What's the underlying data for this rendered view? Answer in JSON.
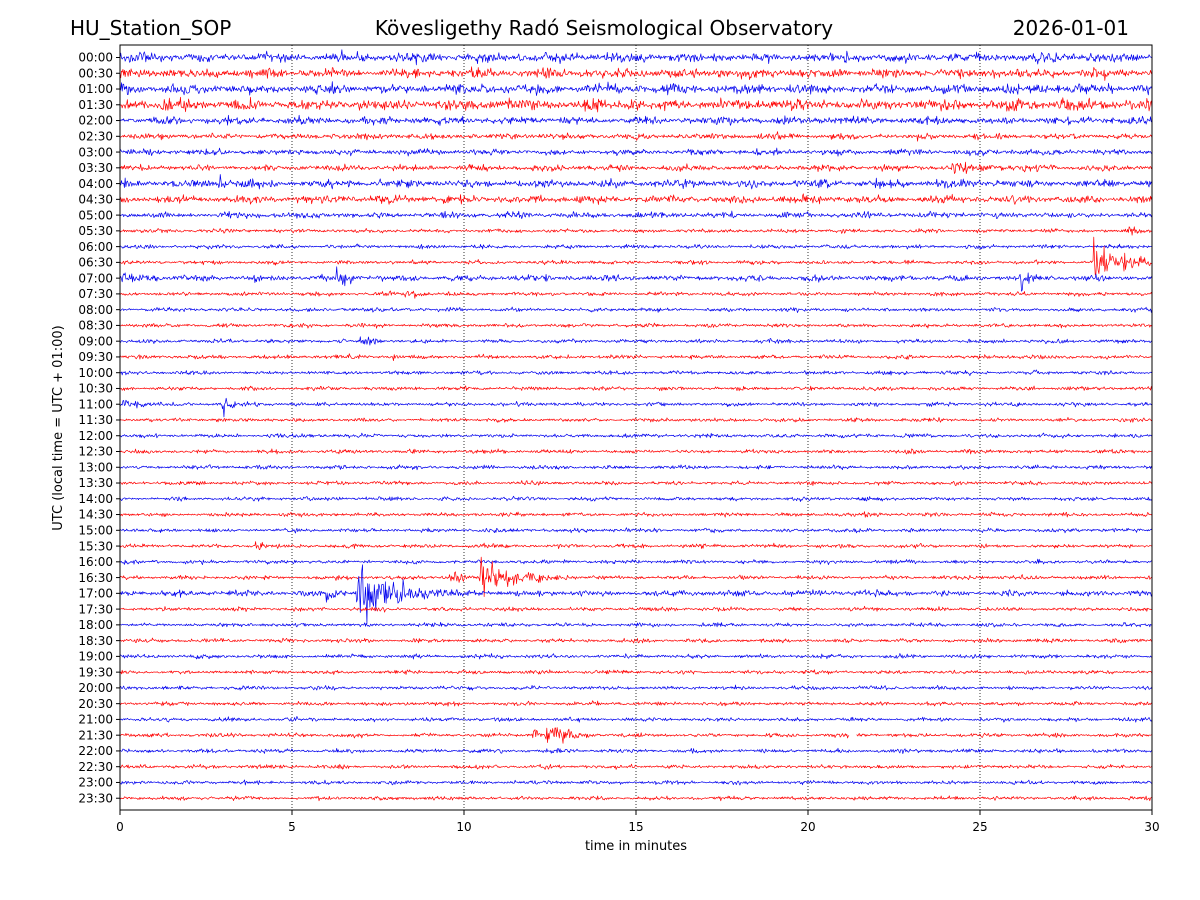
{
  "header": {
    "station": "HU_Station_SOP",
    "title": "Köveslig­ethy Radó Seismological Observatory",
    "date": "2026-01-01"
  },
  "chart_data": {
    "type": "line",
    "xlabel": "time in minutes",
    "ylabel": "UTC (local time = UTC + 01:00)",
    "xlim": [
      0,
      30
    ],
    "xticks": [
      "0",
      "5",
      "10",
      "15",
      "20",
      "25",
      "30"
    ],
    "grid": "vertical dotted at every 5 minutes",
    "colors": {
      "even": "#0000ee",
      "odd": "#ff0000"
    },
    "rows": [
      "00:00",
      "00:30",
      "01:00",
      "01:30",
      "02:00",
      "02:30",
      "03:00",
      "03:30",
      "04:00",
      "04:30",
      "05:00",
      "05:30",
      "06:00",
      "06:30",
      "07:00",
      "07:30",
      "08:00",
      "08:30",
      "09:00",
      "09:30",
      "10:00",
      "10:30",
      "11:00",
      "11:30",
      "12:00",
      "12:30",
      "13:00",
      "13:30",
      "14:00",
      "14:30",
      "15:00",
      "15:30",
      "16:00",
      "16:30",
      "17:00",
      "17:30",
      "18:00",
      "18:30",
      "19:00",
      "19:30",
      "20:00",
      "20:30",
      "21:00",
      "21:30",
      "22:00",
      "22:30",
      "23:00",
      "23:30"
    ],
    "noise_level": [
      5,
      5,
      5,
      6,
      4,
      3,
      3,
      3,
      4,
      4,
      3,
      2,
      2,
      2,
      3,
      2,
      2,
      2,
      2,
      2,
      2,
      2,
      2,
      2,
      2,
      2,
      2,
      2,
      2,
      2,
      2,
      2,
      2,
      2,
      3,
      2,
      2,
      2,
      2,
      2,
      2,
      2,
      2,
      2,
      2,
      2,
      2,
      2
    ],
    "events": [
      {
        "row": "00:30",
        "minute": 17.3,
        "amplitude": 7,
        "duration": 0.5
      },
      {
        "row": "00:30",
        "minute": 25.3,
        "amplitude": 7,
        "duration": 0.8
      },
      {
        "row": "01:30",
        "minute": 14.8,
        "amplitude": 8,
        "duration": 1.5
      },
      {
        "row": "01:30",
        "minute": 18.9,
        "amplitude": 8,
        "duration": 0.8
      },
      {
        "row": "03:30",
        "minute": 24.2,
        "amplitude": 8,
        "duration": 2.5
      },
      {
        "row": "04:00",
        "minute": 2.9,
        "amplitude": 8,
        "duration": 0.6
      },
      {
        "row": "04:00",
        "minute": 18.3,
        "amplitude": 7,
        "duration": 0.6
      },
      {
        "row": "05:30",
        "minute": 29.3,
        "amplitude": 6,
        "duration": 0.8
      },
      {
        "row": "06:30",
        "minute": 28.3,
        "amplitude": 20,
        "duration": 1.7
      },
      {
        "row": "07:00",
        "minute": 0.1,
        "amplitude": 6,
        "duration": 2.3
      },
      {
        "row": "07:00",
        "minute": 6.3,
        "amplitude": 10,
        "duration": 1.2
      },
      {
        "row": "07:00",
        "minute": 26.2,
        "amplitude": 14,
        "duration": 0.5
      },
      {
        "row": "07:30",
        "minute": 8.2,
        "amplitude": 6,
        "duration": 1.0
      },
      {
        "row": "09:00",
        "minute": 7.0,
        "amplitude": 7,
        "duration": 0.7
      },
      {
        "row": "09:30",
        "minute": 7.9,
        "amplitude": 5,
        "duration": 0.4
      },
      {
        "row": "11:00",
        "minute": 0.1,
        "amplitude": 5,
        "duration": 1.8
      },
      {
        "row": "11:00",
        "minute": 3.0,
        "amplitude": 8,
        "duration": 0.6
      },
      {
        "row": "15:30",
        "minute": 3.9,
        "amplitude": 7,
        "duration": 0.7
      },
      {
        "row": "16:30",
        "minute": 9.6,
        "amplitude": 8,
        "duration": 0.9
      },
      {
        "row": "16:30",
        "minute": 10.5,
        "amplitude": 22,
        "duration": 2.0
      },
      {
        "row": "17:00",
        "minute": 6.0,
        "amplitude": 10,
        "duration": 0.8
      },
      {
        "row": "17:00",
        "minute": 6.9,
        "amplitude": 24,
        "duration": 2.8
      },
      {
        "row": "17:00",
        "minute": 15.5,
        "amplitude": 5,
        "duration": 0.5
      },
      {
        "row": "21:30",
        "minute": 12.0,
        "amplitude": 8,
        "duration": 0.5
      },
      {
        "row": "21:30",
        "minute": 12.4,
        "amplitude": 10,
        "duration": 1.4
      }
    ],
    "gaps": [
      {
        "row": "21:30",
        "from": 21.2,
        "to": 21.4
      }
    ]
  }
}
